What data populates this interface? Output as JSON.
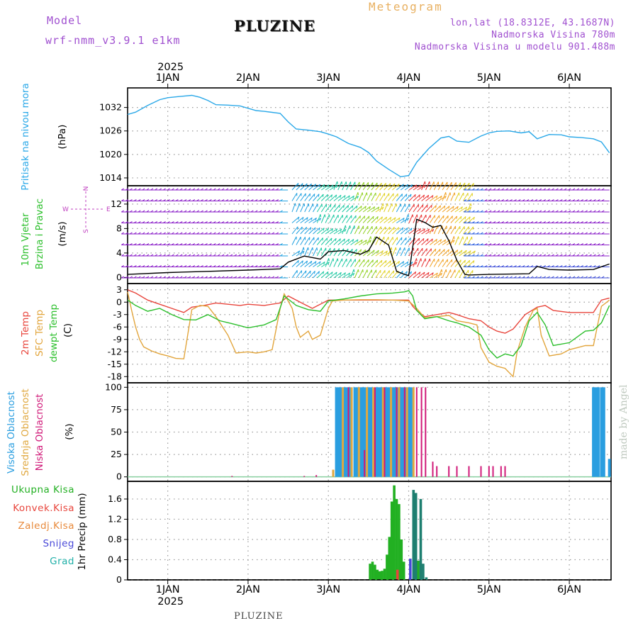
{
  "header": {
    "model_label": "Model",
    "model_name": "wrf-nmm_v3.9.1 e1km",
    "station": "PLUZINE",
    "product": "Meteogram",
    "lonlat": "lon,lat (18.8312E, 43.1687N)",
    "altitude": "Nadmorska Visina 780m",
    "model_altitude": "Nadmorska Visina u modelu 901.488m",
    "credit": "made by Angel"
  },
  "footer": {
    "station": "PLUZINE"
  },
  "chart_data": [
    {
      "type": "line",
      "id": "pressure",
      "ylabel": "Pritisak na nivou mora",
      "unit": "(hPa)",
      "ylim": [
        1012,
        1037
      ],
      "yticks": [
        1014,
        1020,
        1026,
        1032
      ],
      "x_axis": {
        "year": "2025",
        "ticks": [
          "1JAN",
          "2JAN",
          "3JAN",
          "4JAN",
          "5JAN",
          "6JAN"
        ],
        "range_days": [
          0.5,
          6.52
        ]
      },
      "grid": true,
      "series": [
        {
          "color": "#2aa8e8",
          "x": [
            0.5,
            0.6,
            0.75,
            0.9,
            1.0,
            1.15,
            1.3,
            1.4,
            1.5,
            1.6,
            1.75,
            1.9,
            2.1,
            2.2,
            2.4,
            2.5,
            2.6,
            2.75,
            2.9,
            3.0,
            3.1,
            3.25,
            3.4,
            3.5,
            3.6,
            3.75,
            3.9,
            4.0,
            4.1,
            4.25,
            4.4,
            4.5,
            4.6,
            4.75,
            4.9,
            5.0,
            5.1,
            5.25,
            5.4,
            5.5,
            5.6,
            5.75,
            5.9,
            6.0,
            6.15,
            6.3,
            6.4,
            6.5
          ],
          "values": [
            1030.2,
            1030.8,
            1032.5,
            1034.0,
            1034.5,
            1034.8,
            1035.1,
            1034.6,
            1033.8,
            1032.7,
            1032.6,
            1032.4,
            1031.2,
            1031.0,
            1030.5,
            1028.3,
            1026.5,
            1026.2,
            1025.8,
            1025.2,
            1024.5,
            1022.8,
            1021.8,
            1020.5,
            1018.3,
            1016.2,
            1014.3,
            1014.6,
            1018.0,
            1021.5,
            1024.2,
            1024.6,
            1023.4,
            1023.1,
            1024.7,
            1025.5,
            1025.9,
            1026.0,
            1025.5,
            1025.8,
            1024.0,
            1025.1,
            1025.0,
            1024.5,
            1024.3,
            1024.0,
            1023.2,
            1020.4
          ]
        }
      ]
    },
    {
      "type": "line",
      "id": "wind",
      "ylabel": "10m Vjetar",
      "ylabel2": "Brzina i Pravac",
      "unit": "(m/s)",
      "ylim": [
        -1,
        15
      ],
      "yticks": [
        0,
        4,
        8,
        12
      ],
      "legend_directions": {
        "north": "N",
        "south": "S",
        "east": "E",
        "west": "W"
      },
      "grid": true,
      "series": [
        {
          "name": "",
          "color": "#000000",
          "x": [
            0.5,
            1.0,
            1.5,
            2.0,
            2.4,
            2.5,
            2.7,
            2.9,
            3.0,
            3.2,
            3.4,
            3.5,
            3.6,
            3.75,
            3.85,
            3.95,
            4.0,
            4.1,
            4.2,
            4.3,
            4.4,
            4.5,
            4.6,
            4.7,
            4.75,
            5.0,
            5.5,
            5.6,
            5.75,
            6.0,
            6.3,
            6.5
          ],
          "values": [
            0.5,
            0.8,
            1.0,
            1.2,
            1.4,
            2.5,
            3.5,
            3.0,
            4.2,
            4.4,
            3.8,
            4.4,
            6.6,
            5.3,
            1.0,
            0.5,
            0.3,
            9.5,
            9.0,
            8.2,
            8.5,
            6.0,
            2.8,
            0.5,
            0.4,
            0.5,
            0.6,
            1.8,
            1.3,
            1.2,
            1.3,
            2.2
          ]
        }
      ]
    },
    {
      "type": "line",
      "id": "temperature",
      "ylabels": [
        "2m Temp",
        "SFC Temp",
        "dewpt Temp"
      ],
      "unit": "(C)",
      "ylim": [
        -19.5,
        4.5
      ],
      "yticks": [
        3,
        0,
        -3,
        -6,
        -9,
        -12,
        -15,
        -18
      ],
      "grid": true,
      "series": [
        {
          "name": "2m Temp",
          "color": "#e8453c",
          "x": [
            0.5,
            0.6,
            0.75,
            0.9,
            1.05,
            1.2,
            1.3,
            1.45,
            1.6,
            1.75,
            1.9,
            2.0,
            2.2,
            2.4,
            2.5,
            2.7,
            2.8,
            3.0,
            3.3,
            3.6,
            3.85,
            4.0,
            4.05,
            4.1,
            4.2,
            4.35,
            4.5,
            4.6,
            4.75,
            4.9,
            5.0,
            5.1,
            5.2,
            5.3,
            5.45,
            5.6,
            5.7,
            5.8,
            6.0,
            6.3,
            6.4,
            6.5
          ],
          "values": [
            3.0,
            2.2,
            0.5,
            -0.5,
            -1.5,
            -2.5,
            -1.2,
            -0.8,
            -0.2,
            -0.5,
            -0.8,
            -0.5,
            -0.8,
            -0.2,
            1.5,
            -0.5,
            -1.5,
            0.5,
            0.5,
            0.5,
            0.5,
            0.5,
            -1.0,
            -2.0,
            -3.5,
            -3.0,
            -2.5,
            -3.0,
            -4.0,
            -4.5,
            -6.0,
            -7.0,
            -7.5,
            -6.5,
            -3.0,
            -1.2,
            -0.8,
            -2.0,
            -2.5,
            -2.5,
            0.5,
            1.0
          ]
        },
        {
          "name": "SFC Temp",
          "color": "#e2a53c",
          "x": [
            0.5,
            0.55,
            0.6,
            0.65,
            0.7,
            0.8,
            0.9,
            1.0,
            1.1,
            1.2,
            1.3,
            1.4,
            1.5,
            1.6,
            1.75,
            1.85,
            2.0,
            2.1,
            2.2,
            2.3,
            2.4,
            2.45,
            2.55,
            2.6,
            2.65,
            2.75,
            2.8,
            2.9,
            3.0,
            3.05,
            3.2,
            3.4,
            3.6,
            3.8,
            4.0,
            4.1,
            4.2,
            4.35,
            4.5,
            4.6,
            4.75,
            4.85,
            4.9,
            5.0,
            5.1,
            5.2,
            5.3,
            5.35,
            5.45,
            5.55,
            5.6,
            5.65,
            5.75,
            5.9,
            6.0,
            6.1,
            6.2,
            6.3,
            6.4,
            6.5
          ],
          "values": [
            2.5,
            -2.0,
            -6.0,
            -9.0,
            -10.8,
            -11.8,
            -12.5,
            -13.0,
            -13.6,
            -13.7,
            -1.8,
            -0.8,
            -1.0,
            -3.5,
            -8.0,
            -12.3,
            -12.0,
            -12.3,
            -12.0,
            -11.5,
            -1.5,
            2.0,
            -1.5,
            -6.0,
            -8.5,
            -7.0,
            -9.0,
            -8.0,
            -1.5,
            0.3,
            0.5,
            0.6,
            0.6,
            0.5,
            0.3,
            -1.5,
            -3.8,
            -3.5,
            -3.2,
            -4.5,
            -5.0,
            -5.5,
            -11.0,
            -14.5,
            -15.5,
            -16.0,
            -18.0,
            -12.0,
            -6.0,
            -2.0,
            -1.5,
            -8.0,
            -13.0,
            -12.5,
            -11.5,
            -11.0,
            -10.5,
            -10.5,
            -1.0,
            0.5
          ]
        },
        {
          "name": "dewpt Temp",
          "color": "#2bbf2b",
          "x": [
            0.5,
            0.6,
            0.75,
            0.9,
            1.05,
            1.2,
            1.35,
            1.5,
            1.65,
            1.8,
            2.0,
            2.2,
            2.35,
            2.45,
            2.6,
            2.75,
            2.9,
            3.0,
            3.2,
            3.4,
            3.6,
            3.8,
            3.95,
            4.0,
            4.05,
            4.1,
            4.2,
            4.35,
            4.5,
            4.6,
            4.75,
            4.9,
            5.0,
            5.1,
            5.2,
            5.3,
            5.4,
            5.5,
            5.6,
            5.7,
            5.8,
            6.0,
            6.2,
            6.3,
            6.4,
            6.5
          ],
          "values": [
            0.5,
            -0.8,
            -2.2,
            -1.5,
            -3.0,
            -4.2,
            -4.3,
            -3.0,
            -4.5,
            -5.2,
            -6.2,
            -5.5,
            -4.2,
            1.5,
            -0.8,
            -1.8,
            -2.2,
            0.3,
            0.8,
            1.5,
            2.0,
            2.2,
            2.5,
            2.8,
            1.5,
            -2.0,
            -4.0,
            -3.5,
            -4.5,
            -5.0,
            -6.0,
            -8.0,
            -11.5,
            -13.5,
            -12.5,
            -13.0,
            -10.5,
            -4.5,
            -2.5,
            -5.5,
            -10.5,
            -9.8,
            -7.0,
            -6.8,
            -5.0,
            -0.8
          ]
        }
      ]
    },
    {
      "type": "bar",
      "id": "cloud",
      "ylabels": [
        "Visoka Oblacnost",
        "Srednja Oblacnost",
        "Niska Oblacnost"
      ],
      "unit": "(%)",
      "ylim": [
        -5,
        105
      ],
      "yticks": [
        0,
        25,
        50,
        75,
        100
      ],
      "grid": true,
      "series": [
        {
          "name": "Visoka Oblacnost",
          "color": "#2a9ee0",
          "x": [
            3.1,
            3.13,
            3.16,
            3.2,
            3.23,
            3.26,
            3.33,
            3.36,
            3.4,
            3.43,
            3.46,
            3.5,
            3.53,
            3.6,
            3.63,
            3.66,
            3.7,
            3.73,
            3.76,
            3.8,
            3.83,
            3.86,
            3.9,
            3.93,
            3.96,
            4.0,
            4.03,
            6.3,
            6.33,
            6.36,
            6.4,
            6.43,
            6.5
          ],
          "values": [
            100,
            100,
            100,
            100,
            100,
            100,
            100,
            100,
            100,
            100,
            100,
            100,
            100,
            100,
            100,
            100,
            100,
            100,
            100,
            100,
            100,
            100,
            100,
            100,
            100,
            100,
            100,
            100,
            100,
            100,
            100,
            100,
            20
          ]
        },
        {
          "name": "Srednja Oblacnost",
          "color": "#e0a840",
          "x": [
            3.06,
            3.18,
            3.29,
            3.38,
            3.48,
            3.56,
            3.68,
            3.78,
            3.88,
            3.98,
            4.06
          ],
          "values": [
            8,
            100,
            100,
            100,
            100,
            100,
            100,
            100,
            100,
            100,
            100
          ]
        },
        {
          "name": "Niska Oblacnost",
          "color": "#d01878",
          "x": [
            1.8,
            2.7,
            2.85,
            3.25,
            3.45,
            3.58,
            3.7,
            3.85,
            3.95,
            4.1,
            4.16,
            4.21,
            4.3,
            4.35,
            4.5,
            4.6,
            4.75,
            4.9,
            5.0,
            5.05,
            5.15,
            5.2
          ],
          "values": [
            1,
            1,
            2,
            100,
            30,
            100,
            100,
            100,
            100,
            100,
            100,
            100,
            17,
            12,
            12,
            12,
            12,
            12,
            12,
            12,
            12,
            12
          ]
        }
      ]
    },
    {
      "type": "bar",
      "id": "precip",
      "ylabels": [
        "Ukupna Kisa",
        "Konvek.Kisa",
        "Zaledj.Kisa",
        "Snijeg",
        "Grad"
      ],
      "unit": "1hr Precip (mm)",
      "ylim": [
        0,
        1.95
      ],
      "yticks": [
        0,
        0.4,
        0.8,
        1.2,
        1.6
      ],
      "x_axis": {
        "year": "2025",
        "ticks": [
          "1JAN",
          "2JAN",
          "3JAN",
          "4JAN",
          "5JAN",
          "6JAN"
        ]
      },
      "grid": true,
      "series": [
        {
          "name": "Ukupna Kisa",
          "color": "#22b022",
          "x": [
            3.52,
            3.55,
            3.58,
            3.61,
            3.64,
            3.67,
            3.7,
            3.73,
            3.76,
            3.79,
            3.82,
            3.85,
            3.88,
            3.91,
            3.94,
            4.12
          ],
          "values": [
            0.32,
            0.36,
            0.3,
            0.2,
            0.17,
            0.18,
            0.22,
            0.5,
            0.85,
            1.55,
            1.87,
            1.6,
            1.5,
            0.8,
            0.36,
            0.38
          ]
        },
        {
          "name": "Konvek.Kisa",
          "color": "#e8453c",
          "x": [
            3.86
          ],
          "values": [
            0.2
          ]
        },
        {
          "name": "Zaledj.Kisa",
          "color": "#e88a3c",
          "x": [],
          "values": []
        },
        {
          "name": "Snijeg",
          "color": "#4848d8",
          "x": [
            4.02
          ],
          "values": [
            0.42
          ]
        },
        {
          "name": "Grad",
          "color": "#20b0a8",
          "x": [],
          "values": []
        },
        {
          "name": "",
          "color": "#1e7f70",
          "x": [
            4.06,
            4.09,
            4.15,
            4.18,
            4.22
          ],
          "values": [
            1.78,
            1.72,
            1.6,
            0.32,
            0.05
          ]
        }
      ]
    }
  ]
}
